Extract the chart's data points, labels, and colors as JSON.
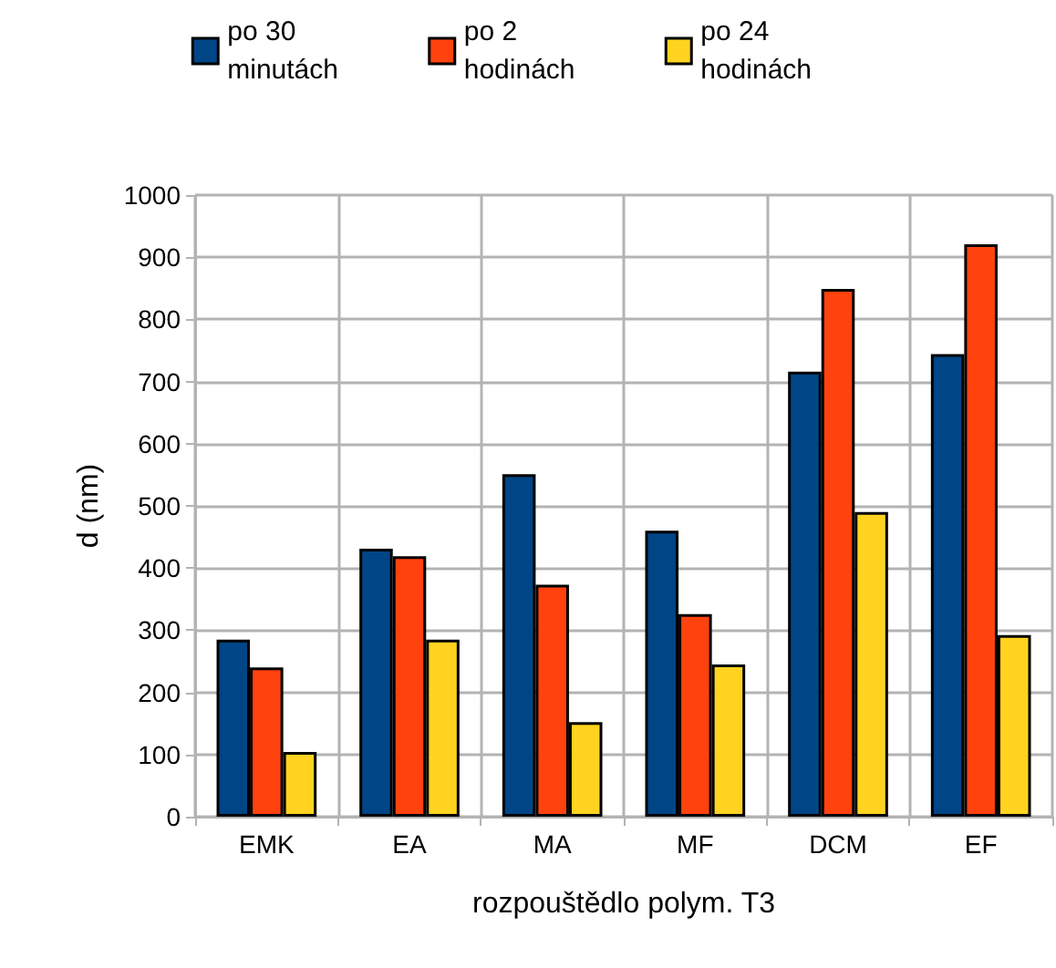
{
  "chart_data": {
    "type": "bar",
    "xlabel": "rozpouštědlo polym. T3",
    "ylabel": "d (nm)",
    "categories": [
      "EMK",
      "EA",
      "MA",
      "MF",
      "DCM",
      "EF"
    ],
    "series": [
      {
        "name": "po 30 minutách",
        "color": "#004586",
        "values": [
          285,
          431,
          551,
          460,
          716,
          744
        ]
      },
      {
        "name": "po 2 hodinách",
        "color": "#ff420e",
        "values": [
          240,
          419,
          373,
          326,
          849,
          921
        ]
      },
      {
        "name": "po 24 hodinách",
        "color": "#ffd320",
        "values": [
          104,
          285,
          152,
          245,
          490,
          292
        ]
      }
    ],
    "ylim": [
      0,
      1000
    ],
    "yticks": [
      0,
      100,
      200,
      300,
      400,
      500,
      600,
      700,
      800,
      900,
      1000
    ],
    "grid": true,
    "legend": "top"
  }
}
